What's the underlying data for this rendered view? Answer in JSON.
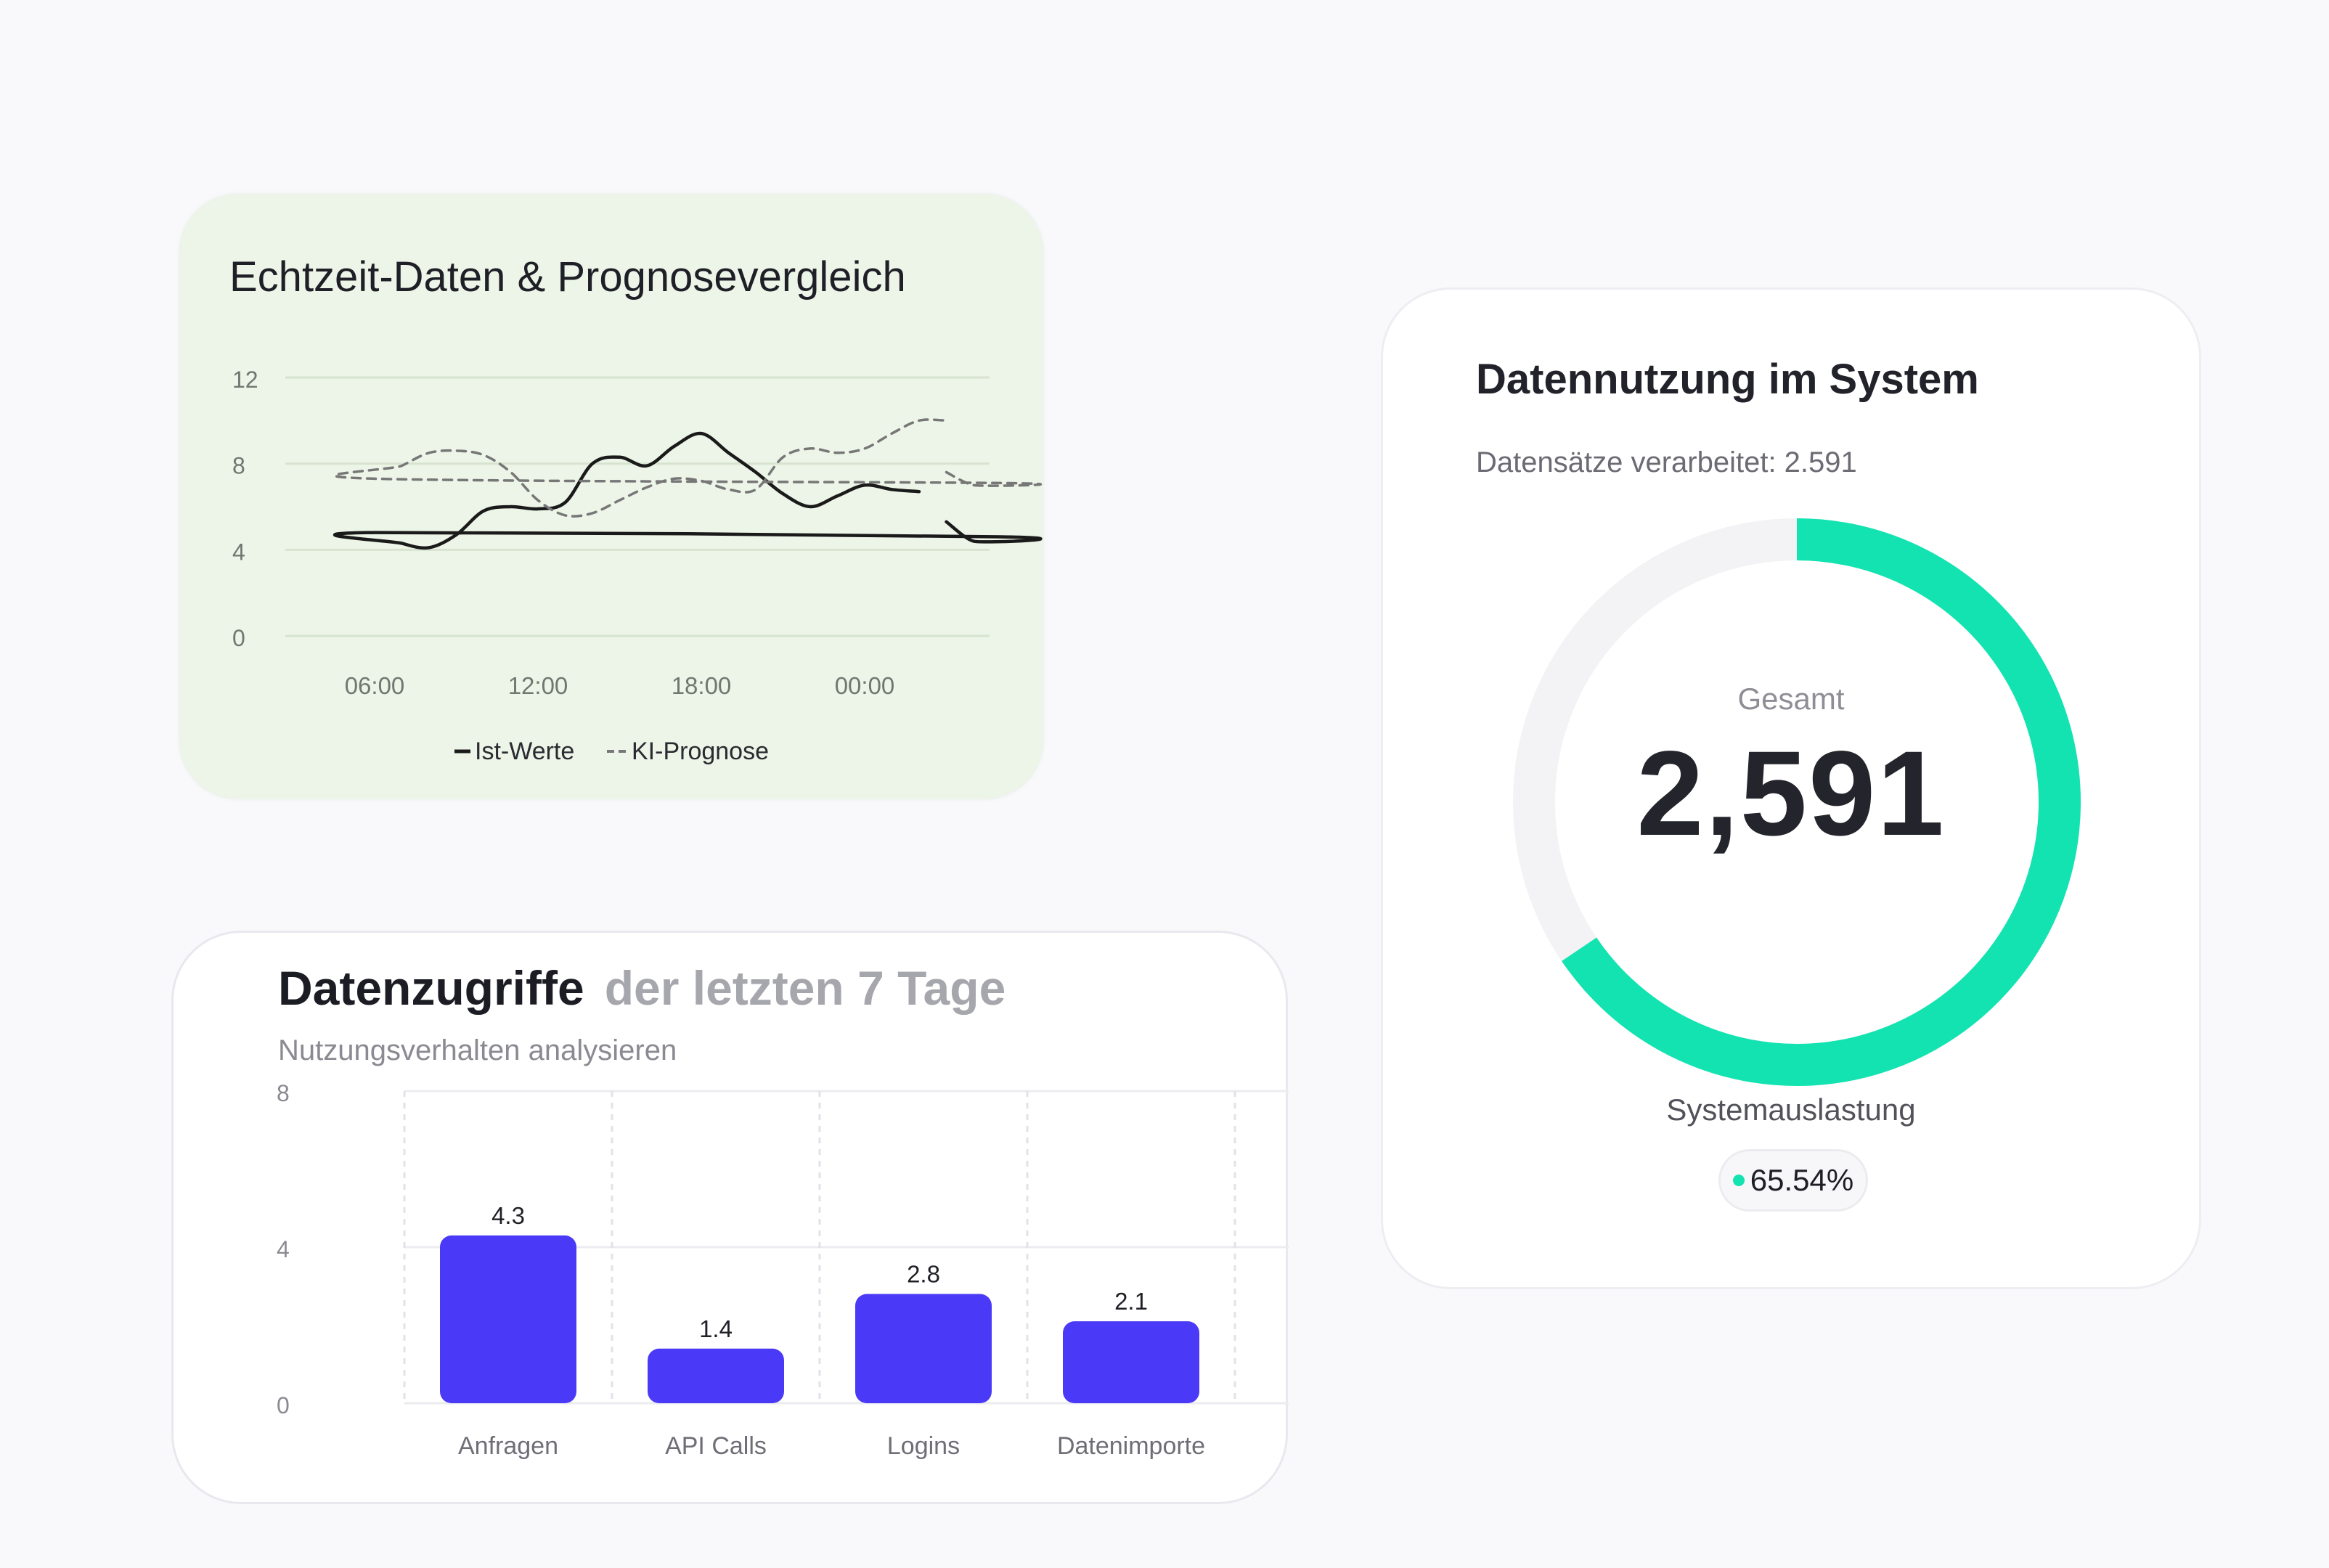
{
  "forecast_card": {
    "title": "Echtzeit-Daten & Prognosevergleich",
    "legend": {
      "actual_label": "Ist-Werte",
      "forecast_label": "KI-Prognose"
    }
  },
  "usage_card": {
    "title": "Datennutzung im System",
    "subtitle": "Datensätze verarbeitet: 2.591",
    "gauge_label": "Gesamt",
    "gauge_value": "2,591",
    "utilization_label": "Systemauslastung",
    "utilization_value": "65.54%",
    "utilization_fraction": 0.6554,
    "accent_color": "#12e3b0"
  },
  "access_card": {
    "title": "Datenzugriffe",
    "title_muted": "der letzten 7 Tage",
    "subtitle": "Nutzungsverhalten analysieren"
  },
  "chart_data": [
    {
      "type": "line",
      "x_ticks": [
        "06:00",
        "12:00",
        "18:00",
        "00:00"
      ],
      "y_ticks": [
        "12",
        "8",
        "4",
        "0"
      ],
      "ylim": [
        0,
        12
      ],
      "grid": true,
      "legend_position": "bottom",
      "series": [
        {
          "name": "Ist-Werte",
          "style": "solid",
          "color": "#1a1a1a",
          "x": [
            "03:00",
            "04:00",
            "05:00",
            "06:00",
            "07:00",
            "08:00",
            "09:00",
            "10:00",
            "11:00",
            "12:00",
            "13:00",
            "14:00",
            "15:00",
            "16:00",
            "17:00",
            "18:00",
            "19:00",
            "20:00",
            "21:00",
            "22:00",
            "23:00",
            "00:00",
            "01:00",
            "02:00"
          ],
          "y": [
            5.3,
            4.4,
            4.6,
            4.8,
            4.3,
            4.1,
            4.7,
            5.8,
            6.0,
            5.9,
            6.2,
            8.0,
            8.3,
            7.9,
            8.8,
            9.4,
            8.5,
            7.6,
            6.6,
            6.0,
            6.5,
            7.0,
            6.8,
            6.7
          ]
        },
        {
          "name": "KI-Prognose",
          "style": "dashed",
          "color": "#777777",
          "x": [
            "03:00",
            "04:00",
            "05:00",
            "06:00",
            "07:00",
            "08:00",
            "09:00",
            "10:00",
            "11:00",
            "12:00",
            "13:00",
            "14:00",
            "15:00",
            "16:00",
            "17:00",
            "18:00",
            "19:00",
            "20:00",
            "21:00",
            "22:00",
            "23:00",
            "00:00",
            "01:00",
            "02:00",
            "03:00"
          ],
          "y": [
            7.6,
            7.0,
            7.1,
            7.3,
            7.9,
            8.5,
            8.6,
            8.4,
            7.6,
            6.3,
            5.6,
            5.7,
            6.3,
            6.9,
            7.3,
            7.2,
            6.8,
            6.8,
            8.3,
            8.7,
            8.5,
            8.7,
            9.4,
            10.0,
            10.0
          ]
        }
      ]
    },
    {
      "type": "bar",
      "categories": [
        "Anfragen",
        "API Calls",
        "Logins",
        "Datenimporte"
      ],
      "values": [
        4.3,
        1.4,
        2.8,
        2.1
      ],
      "value_labels": [
        "4.3",
        "1.4",
        "2.8",
        "2.1"
      ],
      "y_ticks": [
        "8",
        "4",
        "0"
      ],
      "ylim": [
        0,
        8
      ],
      "bar_color": "#4a3af8",
      "grid": true
    }
  ]
}
